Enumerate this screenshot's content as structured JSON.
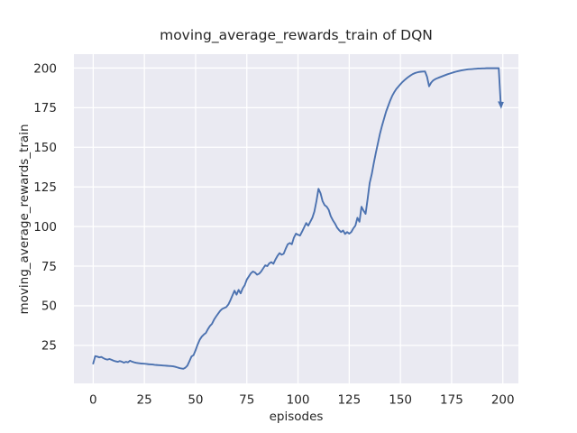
{
  "chart_data": {
    "type": "line",
    "title": "moving_average_rewards_train of DQN",
    "xlabel": "episodes",
    "ylabel": "moving_average_rewards_train",
    "grid": true,
    "legend": "none",
    "x_start": 0,
    "x_step": 1,
    "xticks": [
      0,
      25,
      50,
      75,
      100,
      125,
      150,
      175,
      200
    ],
    "yticks": [
      25,
      50,
      75,
      100,
      125,
      150,
      175,
      200
    ],
    "xlim": [
      -9.4,
      207.6
    ],
    "ylim": [
      1.0,
      208.8
    ],
    "end_arrow": true,
    "style": {
      "fig_bg": "#ffffff",
      "axes_bg": "#eaeaf2",
      "grid_color": "#ffffff",
      "text_color": "#262626",
      "line_color": "#4c72b0",
      "line_width": 1.9
    },
    "series": [
      {
        "name": "moving_average_rewards_train",
        "color": "#4c72b0",
        "values": [
          13.5,
          18.2,
          17.9,
          17.4,
          17.7,
          16.9,
          16.3,
          16.0,
          16.4,
          15.9,
          15.3,
          14.9,
          14.6,
          15.1,
          14.7,
          14.1,
          14.6,
          14.3,
          15.3,
          14.7,
          14.3,
          14.0,
          13.8,
          13.6,
          13.5,
          13.4,
          13.3,
          13.1,
          13.0,
          12.9,
          12.7,
          12.6,
          12.5,
          12.4,
          12.3,
          12.2,
          12.1,
          12.0,
          11.9,
          11.8,
          11.5,
          11.1,
          10.7,
          10.4,
          10.2,
          10.9,
          12.2,
          15.0,
          18.0,
          18.8,
          22.0,
          25.5,
          28.5,
          30.5,
          31.8,
          32.8,
          35.2,
          37.2,
          38.6,
          41.2,
          43.2,
          45.0,
          46.8,
          48.0,
          48.6,
          49.2,
          50.8,
          53.5,
          56.5,
          59.5,
          57.0,
          60.0,
          57.8,
          61.0,
          63.0,
          66.5,
          68.5,
          70.5,
          71.6,
          71.0,
          69.6,
          70.2,
          71.6,
          73.6,
          75.5,
          75.0,
          76.8,
          77.5,
          76.5,
          79.2,
          81.5,
          83.2,
          82.2,
          82.8,
          86.0,
          88.8,
          89.6,
          88.8,
          93.0,
          95.5,
          94.8,
          94.3,
          96.8,
          99.5,
          102.2,
          100.5,
          103.0,
          105.5,
          109.5,
          116.0,
          123.8,
          121.0,
          116.0,
          113.5,
          112.5,
          110.5,
          106.5,
          104.0,
          102.0,
          99.5,
          97.8,
          96.5,
          97.5,
          95.3,
          96.5,
          95.5,
          96.5,
          98.8,
          100.5,
          105.5,
          103.0,
          112.5,
          110.0,
          108.0,
          117.5,
          127.5,
          133.0,
          140.0,
          146.5,
          152.5,
          158.5,
          163.5,
          168.0,
          172.5,
          176.0,
          179.5,
          182.5,
          184.8,
          186.8,
          188.3,
          189.8,
          191.2,
          192.4,
          193.5,
          194.5,
          195.4,
          196.2,
          196.8,
          197.2,
          197.5,
          197.7,
          197.8,
          197.9,
          194.5,
          188.5,
          190.8,
          192.2,
          193.0,
          193.6,
          194.1,
          194.6,
          195.1,
          195.6,
          196.1,
          196.5,
          196.9,
          197.3,
          197.7,
          198.0,
          198.3,
          198.6,
          198.8,
          199.0,
          199.2,
          199.3,
          199.4,
          199.5,
          199.6,
          199.7,
          199.7,
          199.8,
          199.8,
          199.9,
          199.9,
          199.9,
          199.9,
          199.9,
          199.9,
          199.9,
          176.8
        ]
      }
    ]
  }
}
